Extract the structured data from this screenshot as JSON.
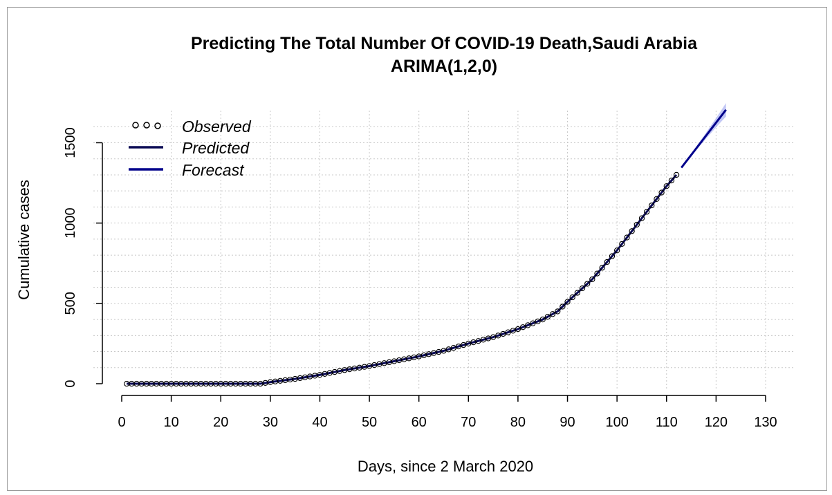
{
  "chart_data": {
    "type": "line",
    "title": "Predicting The Total Number Of COVID-19 Death,Saudi Arabia",
    "subtitle": "ARIMA(1,2,0)",
    "xlabel": "Days, since 2 March 2020",
    "ylabel": "Cumulative cases",
    "xlim": [
      0,
      130
    ],
    "ylim": [
      -30,
      1700
    ],
    "x_ticks": [
      0,
      10,
      20,
      30,
      40,
      50,
      60,
      70,
      80,
      90,
      100,
      110,
      120,
      130
    ],
    "y_ticks": [
      0,
      500,
      1000,
      1500
    ],
    "grid": true,
    "legend_position": "top-left",
    "legend": [
      {
        "label": "Observed",
        "kind": "points"
      },
      {
        "label": "Predicted",
        "kind": "line",
        "color": "#0b0b55"
      },
      {
        "label": "Forecast",
        "kind": "line",
        "color": "#00008b"
      }
    ],
    "colors": {
      "predicted": "#0b0b55",
      "forecast": "#00008b",
      "interval": "#aeb4f2"
    },
    "observed_key_days": [
      1,
      28,
      30,
      35,
      40,
      45,
      50,
      55,
      60,
      65,
      70,
      75,
      80,
      85,
      88,
      90,
      95,
      100,
      105,
      110,
      112
    ],
    "observed_key_values": [
      0,
      0,
      10,
      30,
      55,
      85,
      110,
      140,
      170,
      205,
      250,
      290,
      340,
      400,
      450,
      510,
      650,
      830,
      1030,
      1230,
      1300
    ],
    "forecast": {
      "x": [
        113,
        114,
        115,
        116,
        117,
        118,
        119,
        120,
        121,
        122
      ],
      "y": [
        1345,
        1385,
        1425,
        1465,
        1505,
        1545,
        1585,
        1625,
        1665,
        1705
      ],
      "lower": [
        1342,
        1380,
        1417,
        1453,
        1490,
        1526,
        1561,
        1596,
        1630,
        1663
      ],
      "upper": [
        1348,
        1390,
        1433,
        1477,
        1520,
        1564,
        1609,
        1654,
        1700,
        1747
      ]
    }
  }
}
